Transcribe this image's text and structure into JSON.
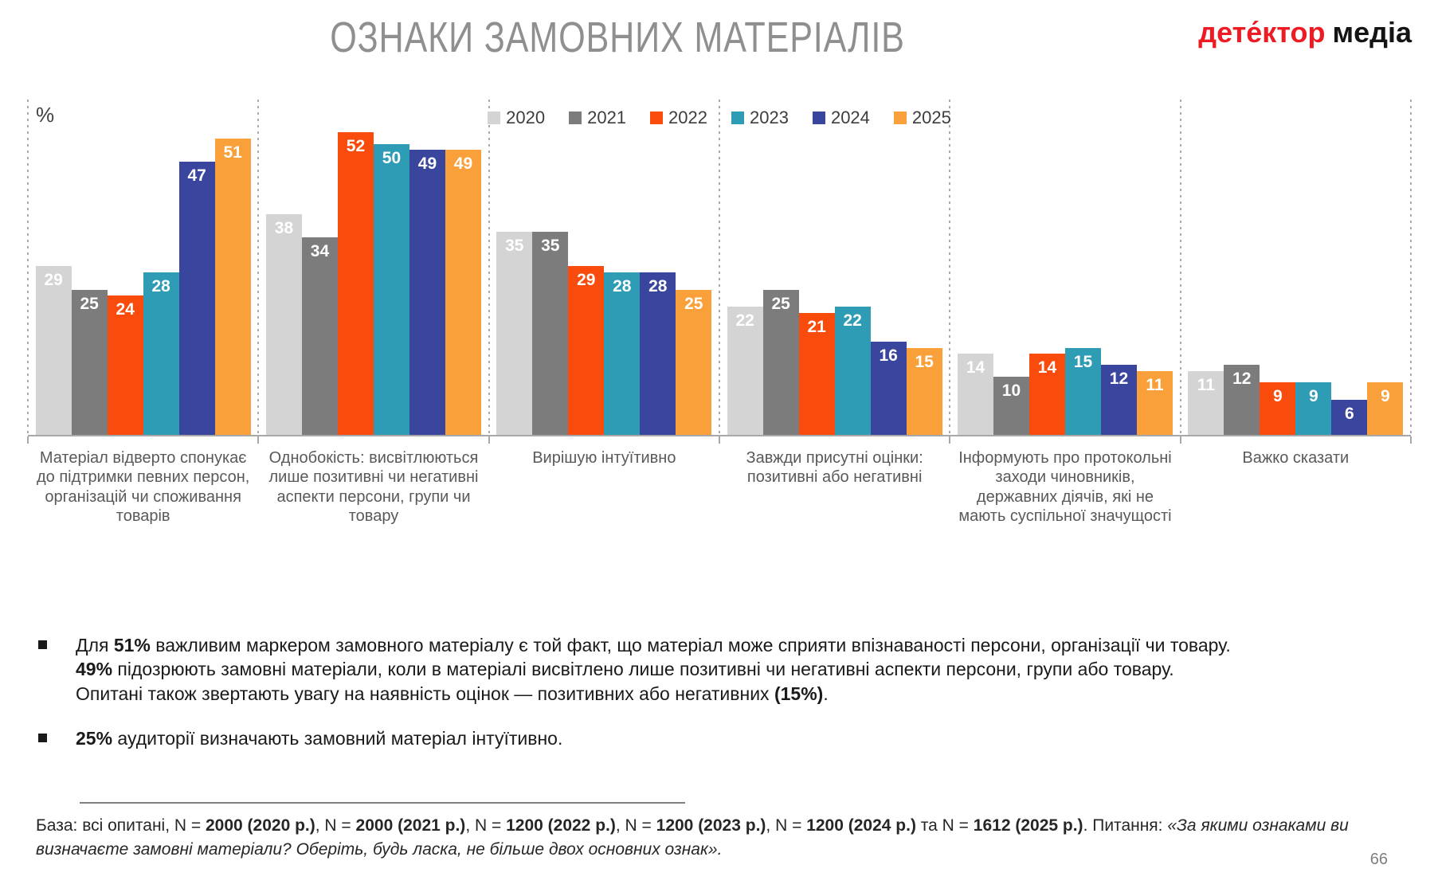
{
  "slide": {
    "title": "ОЗНАКИ ЗАМОВНИХ МАТЕРІАЛІВ",
    "logo": {
      "part1": "дете́ктор",
      "part2": "медіа"
    },
    "page_number": "66"
  },
  "chart_data": {
    "type": "bar",
    "unit_label": "%",
    "grid": false,
    "legend_position": "top",
    "ylim": [
      0,
      55
    ],
    "categories": [
      "Матеріал відверто спонукає до підтримки певних персон, організацій чи споживання товарів",
      "Однобокість: висвітлюються лише позитивні чи негативні аспекти персони, групи чи товару",
      "Вирішую інтуїтивно",
      "Завжди присутні оцінки: позитивні або негативні",
      "Інформують про протокольні заходи чиновників, державних діячів, які не мають суспільної значущості",
      "Важко сказати"
    ],
    "series": [
      {
        "name": "2020",
        "color": "#d4d4d4",
        "values": [
          29,
          38,
          35,
          22,
          14,
          11
        ]
      },
      {
        "name": "2021",
        "color": "#7c7c7c",
        "values": [
          25,
          34,
          35,
          25,
          10,
          12
        ]
      },
      {
        "name": "2022",
        "color": "#f94c0c",
        "values": [
          24,
          52,
          29,
          21,
          14,
          9
        ]
      },
      {
        "name": "2023",
        "color": "#2d9cb4",
        "values": [
          28,
          50,
          28,
          22,
          15,
          9
        ]
      },
      {
        "name": "2024",
        "color": "#3a459e",
        "values": [
          47,
          49,
          28,
          16,
          12,
          6
        ]
      },
      {
        "name": "2025",
        "color": "#f9a03a",
        "values": [
          51,
          49,
          25,
          15,
          11,
          9
        ]
      }
    ]
  },
  "bullets": [
    {
      "segments": [
        {
          "text": "Для "
        },
        {
          "text": "51%",
          "bold": true
        },
        {
          "text": " важливим маркером замовного матеріалу є той факт, що матеріал може сприяти впізнаваності персони, організації чи товару. "
        },
        {
          "text": "49%",
          "bold": true
        },
        {
          "text": " підозрюють замовні матеріали, коли в матеріалі висвітлено лише позитивні чи негативні аспекти персони, групи або товару. Опитані також звертають увагу на наявність оцінок — позитивних або негативних "
        },
        {
          "text": "(15%)",
          "bold": true
        },
        {
          "text": "."
        }
      ]
    },
    {
      "segments": [
        {
          "text": "25%",
          "bold": true
        },
        {
          "text": " аудиторії визначають замовний матеріал інтуїтивно."
        }
      ]
    }
  ],
  "footnote": {
    "segments": [
      {
        "text": "База: всі опитані, N = "
      },
      {
        "text": "2000 (2020 р.)",
        "bold": true
      },
      {
        "text": ", N = "
      },
      {
        "text": "2000 (2021 р.)",
        "bold": true
      },
      {
        "text": ", N = "
      },
      {
        "text": "1200 (2022 р.)",
        "bold": true
      },
      {
        "text": ", N = "
      },
      {
        "text": "1200 (2023 р.)",
        "bold": true
      },
      {
        "text": ", N = "
      },
      {
        "text": "1200 (2024 р.)",
        "bold": true
      },
      {
        "text": " та N = "
      },
      {
        "text": "1612 (2025 р.)",
        "bold": true
      },
      {
        "text": ". Питання: "
      },
      {
        "text": "«За якими ознаками ви визначаєте замовні матеріали? Оберіть, будь ласка, не більше двох основних ознак».",
        "italic": true
      }
    ]
  }
}
